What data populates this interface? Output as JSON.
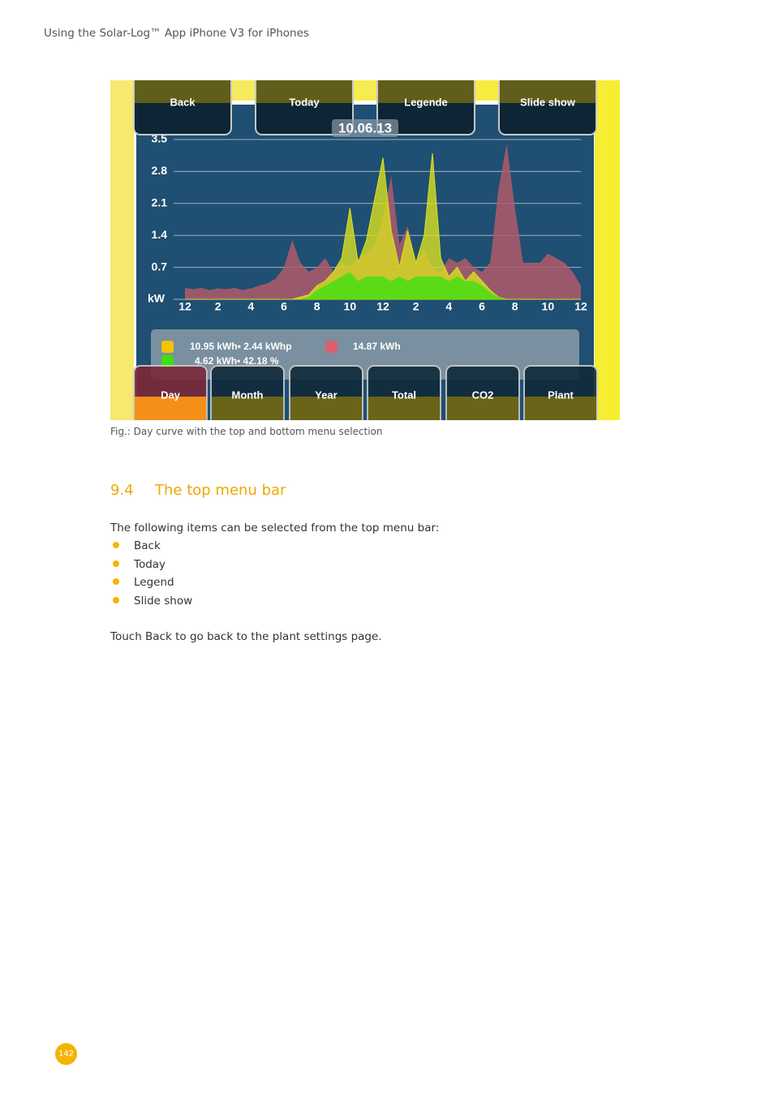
{
  "header": {
    "title": "Using the Solar-Log™ App iPhone V3 for iPhones"
  },
  "figure": {
    "top_menu": [
      "Back",
      "Today",
      "Legende",
      "Slide show"
    ],
    "date": "10.06.13",
    "bottom_menu": [
      "Day",
      "Month",
      "Year",
      "Total",
      "CO2",
      "Plant"
    ],
    "legend": {
      "production": "10.95 kWh• 2.44 kWhp",
      "self_consumption": "4.62 kWh• 42.18 %",
      "consumption": "14.87 kWh"
    },
    "chart_data": {
      "type": "area",
      "y_label": "kW",
      "x": [
        0,
        0.5,
        1,
        1.5,
        2,
        2.5,
        3,
        3.5,
        4,
        4.5,
        5,
        5.5,
        6,
        6.5,
        7,
        7.5,
        8,
        8.5,
        9,
        9.5,
        10,
        10.5,
        11,
        11.5,
        12,
        12.5,
        13,
        13.5,
        14,
        14.5,
        15,
        15.5,
        16,
        16.5,
        17,
        17.5,
        18,
        18.5,
        19,
        19.5,
        20,
        20.5,
        21,
        21.5,
        22,
        22.5,
        23,
        23.5,
        24
      ],
      "series": [
        {
          "color": "#b05a6a",
          "values": [
            0.25,
            0.22,
            0.25,
            0.2,
            0.24,
            0.22,
            0.25,
            0.2,
            0.24,
            0.3,
            0.35,
            0.45,
            0.7,
            1.3,
            0.8,
            0.6,
            0.7,
            0.9,
            0.6,
            0.8,
            0.7,
            0.9,
            1.0,
            1.2,
            1.8,
            2.7,
            1.2,
            1.6,
            0.8,
            1.1,
            0.7,
            0.6,
            0.9,
            0.8,
            0.9,
            0.7,
            0.6,
            0.8,
            2.4,
            3.4,
            2.0,
            0.8,
            0.8,
            0.8,
            1.0,
            0.9,
            0.8,
            0.6,
            0.3
          ]
        },
        {
          "color": "#d8e020",
          "values": [
            0,
            0,
            0,
            0,
            0,
            0,
            0,
            0,
            0,
            0,
            0,
            0,
            0,
            0,
            0.05,
            0.1,
            0.3,
            0.4,
            0.6,
            0.9,
            2.0,
            0.8,
            1.3,
            2.2,
            3.1,
            1.5,
            0.7,
            1.5,
            0.8,
            1.4,
            3.2,
            0.9,
            0.5,
            0.7,
            0.4,
            0.6,
            0.4,
            0.2,
            0.05,
            0,
            0,
            0,
            0,
            0,
            0,
            0,
            0,
            0,
            0
          ]
        },
        {
          "color": "#3ee010",
          "values": [
            0,
            0,
            0,
            0,
            0,
            0,
            0,
            0,
            0,
            0,
            0,
            0,
            0,
            0,
            0,
            0.05,
            0.2,
            0.3,
            0.4,
            0.5,
            0.6,
            0.4,
            0.5,
            0.5,
            0.5,
            0.4,
            0.5,
            0.4,
            0.5,
            0.5,
            0.5,
            0.5,
            0.4,
            0.5,
            0.4,
            0.4,
            0.3,
            0.15,
            0.05,
            0,
            0,
            0,
            0,
            0,
            0,
            0,
            0,
            0,
            0
          ]
        }
      ],
      "xlim": [
        0,
        24
      ],
      "xticks": [
        {
          "value": 0,
          "label": "12"
        },
        2,
        4,
        6,
        8,
        10,
        {
          "value": 12,
          "label": "12"
        },
        {
          "value": 14,
          "label": "2"
        },
        {
          "value": 16,
          "label": "4"
        },
        {
          "value": 18,
          "label": "6"
        },
        {
          "value": 20,
          "label": "8"
        },
        {
          "value": 22,
          "label": "10"
        },
        {
          "value": 24,
          "label": "12"
        }
      ],
      "ylim": [
        0,
        3.5
      ],
      "yticks": [
        0.7,
        1.4,
        2.1,
        2.8,
        3.5
      ],
      "grid": true
    }
  },
  "caption": "Fig.: Day curve with the top and bottom menu selection",
  "section": {
    "number": "9.4",
    "title": "The top menu bar"
  },
  "intro": "The following items can be selected from the top menu bar:",
  "list": [
    "Back",
    "Today",
    "Legend",
    "Slide show"
  ],
  "closing": "Touch Back to go back to the plant settings page.",
  "page_number": "142"
}
